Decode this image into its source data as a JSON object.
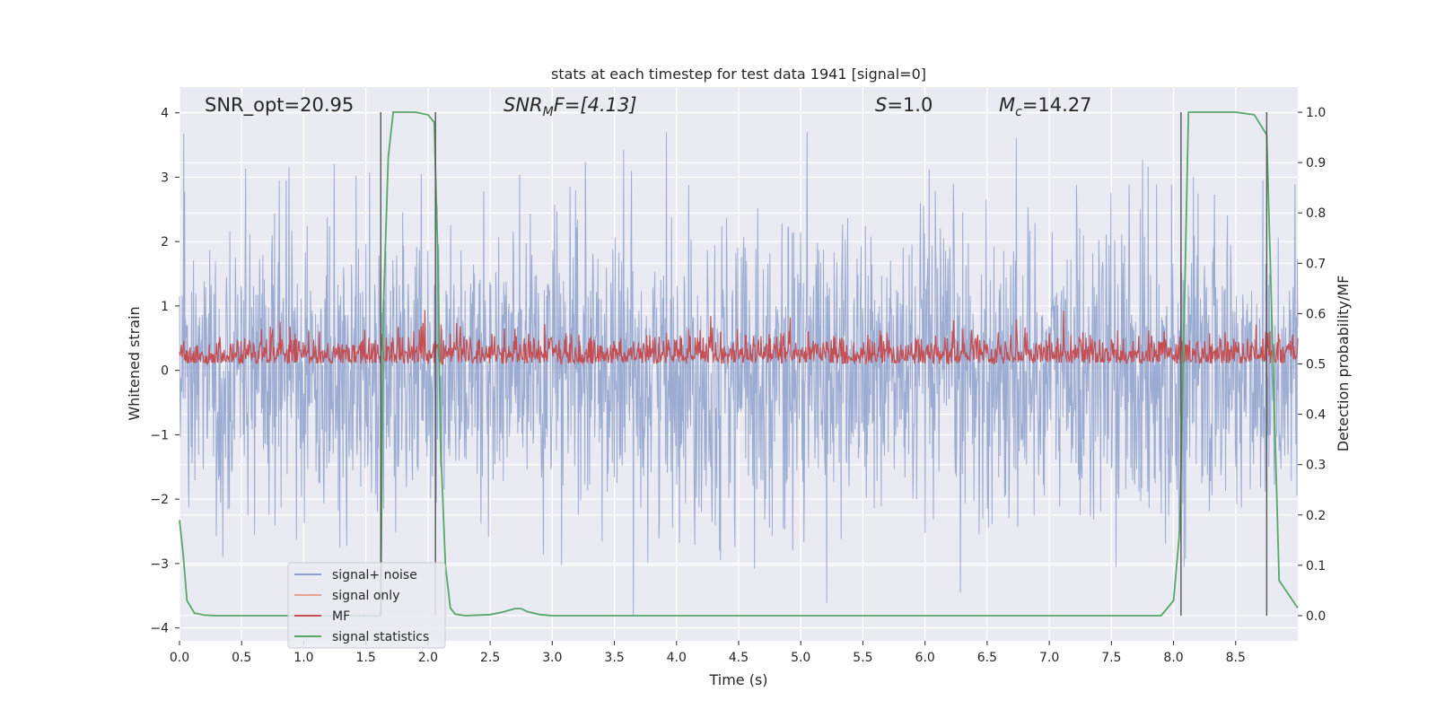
{
  "chart_data": {
    "type": "line",
    "title": "stats at each timestep for test data 1941 [signal=0]",
    "xlabel": "Time (s)",
    "ylabel": "Whitened strain",
    "y2label": "Detection probability/MF",
    "xlim": [
      0.0,
      9.0
    ],
    "ylim": [
      -4.2,
      4.4
    ],
    "y2lim": [
      -0.05,
      1.05
    ],
    "grid": true,
    "legend_position": "lower-left",
    "x_ticks": [
      "0.0",
      "0.5",
      "1.0",
      "1.5",
      "2.0",
      "2.5",
      "3.0",
      "3.5",
      "4.0",
      "4.5",
      "5.0",
      "5.5",
      "6.0",
      "6.5",
      "7.0",
      "7.5",
      "8.0",
      "8.5"
    ],
    "y_ticks": [
      "4",
      "3",
      "2",
      "1",
      "0",
      "−1",
      "−2",
      "−3",
      "−4"
    ],
    "y_tick_values": [
      4,
      3,
      2,
      1,
      0,
      -1,
      -2,
      -3,
      -4
    ],
    "y2_ticks": [
      "1.0",
      "0.9",
      "0.8",
      "0.7",
      "0.6",
      "0.5",
      "0.4",
      "0.3",
      "0.2",
      "0.1",
      "0.0"
    ],
    "y2_tick_values": [
      1.0,
      0.9,
      0.8,
      0.7,
      0.6,
      0.5,
      0.4,
      0.3,
      0.2,
      0.1,
      0.0
    ],
    "annotations": {
      "snr_opt": "SNR_opt=20.95",
      "snr_mf_main": "SNR",
      "snr_mf_sub": "M",
      "snr_mf_rest": "F=[4.13]",
      "s_main": "S",
      "s_rest": "=1.0",
      "mc_main": "M",
      "mc_sub": "c",
      "mc_rest": "=14.27"
    },
    "series": [
      {
        "name": "signal+ noise",
        "color": "#8da0cb",
        "axis": "left",
        "amplitude_range": [
          -3.8,
          3.7
        ],
        "note": "whitened noise, dense"
      },
      {
        "name": "signal only",
        "color": "#e8a48a",
        "axis": "left",
        "values": []
      },
      {
        "name": "MF",
        "color": "#c44e52",
        "axis": "right",
        "range": [
          0.5,
          0.61
        ]
      },
      {
        "name": "signal statistics",
        "color": "#55a868",
        "axis": "right",
        "x": [
          0.0,
          0.03,
          0.06,
          0.12,
          0.2,
          0.3,
          0.5,
          1.0,
          1.5,
          1.62,
          1.64,
          1.68,
          1.72,
          1.78,
          1.9,
          2.0,
          2.05,
          2.08,
          2.1,
          2.14,
          2.18,
          2.22,
          2.3,
          2.5,
          2.6,
          2.7,
          2.75,
          2.8,
          2.9,
          3.0,
          3.5,
          4.0,
          5.0,
          6.0,
          7.0,
          7.9,
          8.0,
          8.05,
          8.12,
          8.2,
          8.5,
          8.65,
          8.75,
          8.85,
          9.0
        ],
        "values": [
          0.19,
          0.12,
          0.03,
          0.005,
          0.001,
          0.0,
          0.0,
          0.0,
          0.0,
          0.0,
          0.6,
          0.91,
          1.0,
          1.0,
          1.0,
          0.995,
          0.98,
          0.7,
          0.35,
          0.1,
          0.015,
          0.003,
          0.0,
          0.002,
          0.007,
          0.014,
          0.014,
          0.008,
          0.002,
          0.0,
          0.0,
          0.0,
          0.0,
          0.0,
          0.0,
          0.0,
          0.03,
          0.17,
          1.0,
          1.0,
          1.0,
          0.995,
          0.955,
          0.07,
          0.015
        ]
      }
    ],
    "vlines": [
      1.62,
      2.06,
      8.06,
      8.75
    ],
    "vline_color": "#555555"
  }
}
